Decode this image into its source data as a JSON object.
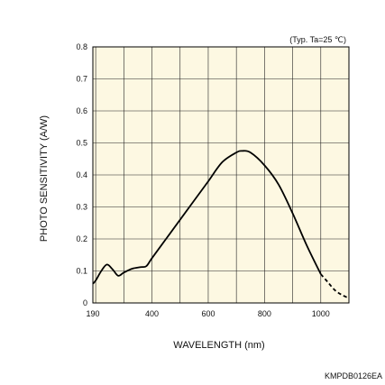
{
  "chart_data": {
    "type": "line",
    "title": "",
    "note": "(Typ. Ta=25 ℃)",
    "xlabel": "WAVELENGTH (nm)",
    "ylabel": "PHOTO SENSITIVITY (A/W)",
    "xlim": [
      190,
      1100
    ],
    "ylim": [
      0,
      0.8
    ],
    "x_ticks": [
      190,
      400,
      600,
      800,
      1000
    ],
    "y_ticks": [
      0,
      0.1,
      0.2,
      0.3,
      0.4,
      0.5,
      0.6,
      0.7,
      0.8
    ],
    "grid": true,
    "background_color": "#fdf8e2",
    "line_color": "#000000",
    "series": [
      {
        "style": "solid",
        "x": [
          190,
          200,
          220,
          240,
          260,
          280,
          300,
          330,
          360,
          380,
          400,
          450,
          500,
          550,
          600,
          650,
          700,
          720,
          750,
          800,
          850,
          900,
          950,
          1000
        ],
        "y": [
          0.06,
          0.07,
          0.1,
          0.12,
          0.105,
          0.085,
          0.095,
          0.107,
          0.112,
          0.115,
          0.14,
          0.2,
          0.26,
          0.32,
          0.38,
          0.44,
          0.47,
          0.475,
          0.47,
          0.43,
          0.37,
          0.28,
          0.18,
          0.09
        ]
      },
      {
        "style": "dashed",
        "x": [
          1000,
          1025,
          1050,
          1075,
          1100
        ],
        "y": [
          0.09,
          0.065,
          0.04,
          0.025,
          0.015
        ]
      }
    ]
  },
  "footer_code": "KMPDB0126EA"
}
